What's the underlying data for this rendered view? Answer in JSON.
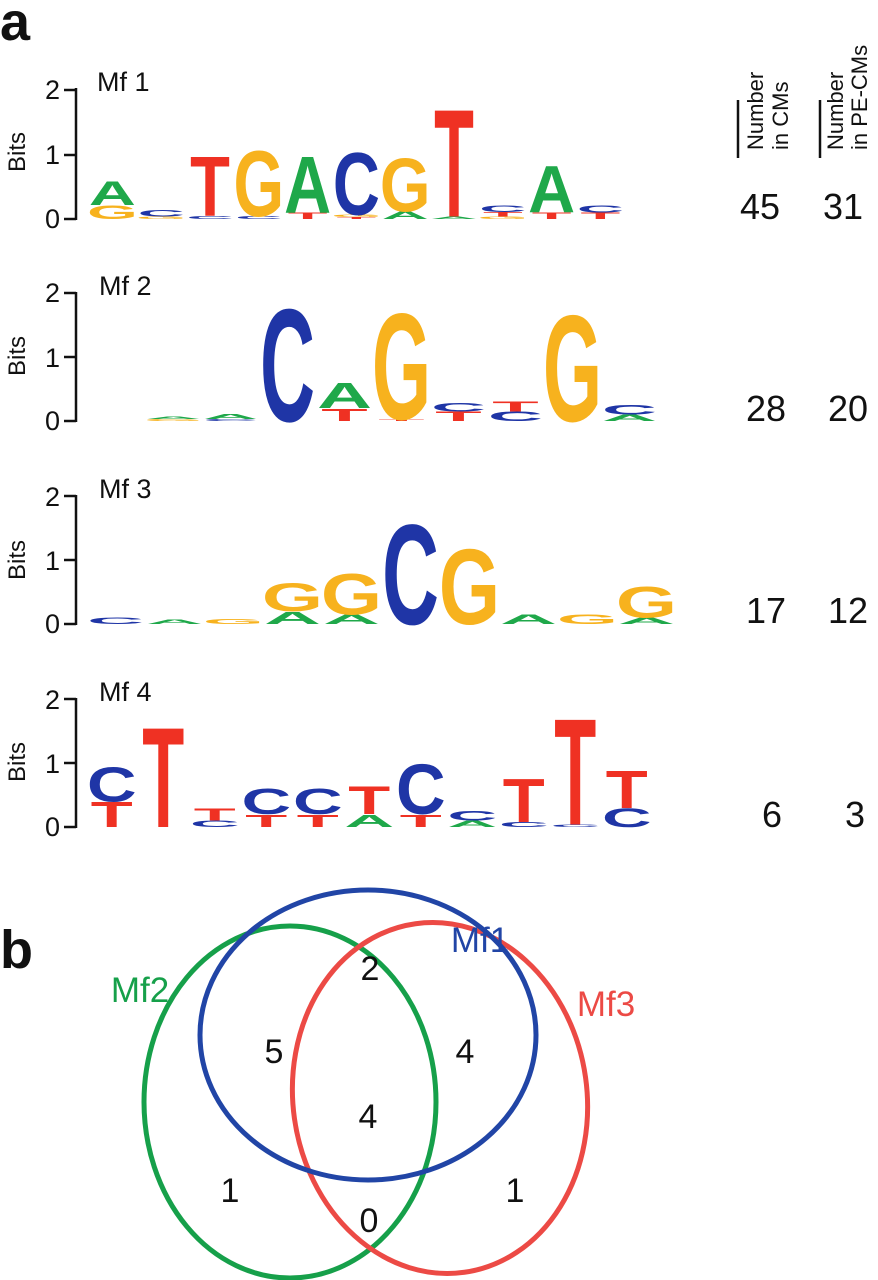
{
  "panel_a": {
    "letter": "a",
    "y_axis_label": "Bits",
    "y_ticks": [
      "0",
      "1",
      "2"
    ],
    "column_headers": [
      [
        "Number",
        "in CMs"
      ],
      [
        "Number",
        "in PE-CMs"
      ]
    ],
    "colors": {
      "A": "#1fa84a",
      "C": "#1f35a6",
      "G": "#f7b21e",
      "T": "#ef3123"
    },
    "motifs": [
      {
        "name": "Mf 1",
        "count_cms": "45",
        "count_pe_cms": "31",
        "positions": [
          [
            [
              "G",
              0.22
            ],
            [
              "A",
              0.38
            ]
          ],
          [
            [
              "G",
              0.04
            ],
            [
              "C",
              0.1
            ]
          ],
          [
            [
              "C",
              0.05
            ],
            [
              "T",
              0.95
            ]
          ],
          [
            [
              "C",
              0.05
            ],
            [
              "G",
              1.05
            ]
          ],
          [
            [
              "T",
              0.1
            ],
            [
              "A",
              0.9
            ]
          ],
          [
            [
              "T",
              0.03
            ],
            [
              "G",
              0.04
            ],
            [
              "C",
              1.0
            ]
          ],
          [
            [
              "A",
              0.12
            ],
            [
              "G",
              0.85
            ]
          ],
          [
            [
              "A",
              0.04
            ],
            [
              "T",
              1.72
            ]
          ],
          [
            [
              "G",
              0.04
            ],
            [
              "T",
              0.07
            ],
            [
              "C",
              0.1
            ]
          ],
          [
            [
              "T",
              0.1
            ],
            [
              "A",
              0.75
            ]
          ],
          [
            [
              "T",
              0.1
            ],
            [
              "C",
              0.11
            ]
          ]
        ]
      },
      {
        "name": "Mf 2",
        "count_cms": "28",
        "count_pe_cms": "20",
        "positions": [
          [],
          [
            [
              "G",
              0.03
            ],
            [
              "A",
              0.04
            ]
          ],
          [
            [
              "C",
              0.03
            ],
            [
              "A",
              0.08
            ]
          ],
          [
            [
              "C",
              1.8
            ]
          ],
          [
            [
              "T",
              0.2
            ],
            [
              "A",
              0.4
            ]
          ],
          [
            [
              "T",
              0.03
            ],
            [
              "G",
              1.7
            ]
          ],
          [
            [
              "T",
              0.15
            ],
            [
              "C",
              0.13
            ]
          ],
          [
            [
              "C",
              0.15
            ],
            [
              "T",
              0.17
            ]
          ],
          [
            [
              "G",
              1.7
            ]
          ],
          [
            [
              "A",
              0.1
            ],
            [
              "C",
              0.15
            ]
          ]
        ]
      },
      {
        "name": "Mf 3",
        "count_cms": "17",
        "count_pe_cms": "12",
        "positions": [
          [
            [
              "C",
              0.1
            ]
          ],
          [
            [
              "A",
              0.07
            ]
          ],
          [
            [
              "G",
              0.08
            ]
          ],
          [
            [
              "A",
              0.2
            ],
            [
              "G",
              0.45
            ]
          ],
          [
            [
              "A",
              0.15
            ],
            [
              "G",
              0.65
            ]
          ],
          [
            [
              "C",
              1.6
            ]
          ],
          [
            [
              "G",
              1.2
            ]
          ],
          [
            [
              "A",
              0.15
            ]
          ],
          [
            [
              "G",
              0.15
            ]
          ],
          [
            [
              "A",
              0.1
            ],
            [
              "G",
              0.5
            ]
          ]
        ]
      },
      {
        "name": "Mf 4",
        "count_cms": "6",
        "count_pe_cms": "3",
        "positions": [
          [
            [
              "T",
              0.4
            ],
            [
              "C",
              0.55
            ]
          ],
          [
            [
              "T",
              1.6
            ]
          ],
          [
            [
              "C",
              0.1
            ],
            [
              "T",
              0.2
            ]
          ],
          [
            [
              "T",
              0.2
            ],
            [
              "C",
              0.4
            ]
          ],
          [
            [
              "T",
              0.2
            ],
            [
              "C",
              0.4
            ]
          ],
          [
            [
              "A",
              0.2
            ],
            [
              "T",
              0.45
            ]
          ],
          [
            [
              "T",
              0.2
            ],
            [
              "C",
              0.8
            ]
          ],
          [
            [
              "A",
              0.1
            ],
            [
              "C",
              0.15
            ]
          ],
          [
            [
              "C",
              0.08
            ],
            [
              "T",
              0.7
            ]
          ],
          [
            [
              "C",
              0.04
            ],
            [
              "T",
              1.7
            ]
          ],
          [
            [
              "C",
              0.3
            ],
            [
              "T",
              0.6
            ]
          ]
        ]
      }
    ]
  },
  "panel_b": {
    "letter": "b",
    "sets": [
      {
        "label": "Mf1",
        "color": "#2145a6"
      },
      {
        "label": "Mf2",
        "color": "#16a04a"
      },
      {
        "label": "Mf3",
        "color": "#ec4a45"
      }
    ],
    "region_counts": {
      "mf1_only": "2",
      "mf1_mf2": "5",
      "mf1_mf3": "4",
      "all_three": "4",
      "mf2_only": "1",
      "mf2_mf3": "0",
      "mf3_only": "1"
    }
  }
}
